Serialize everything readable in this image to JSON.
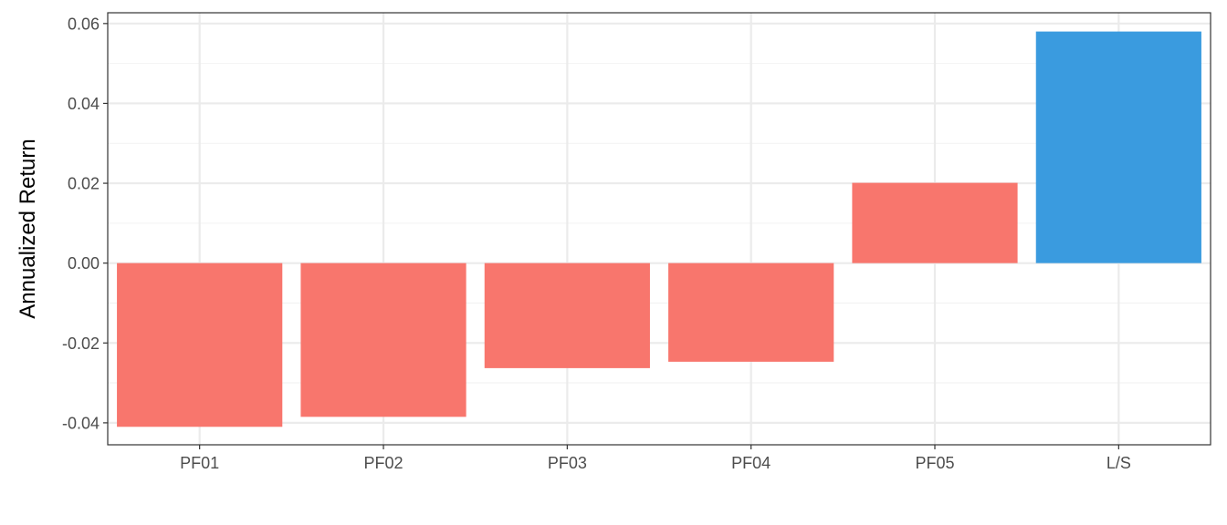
{
  "chart_data": {
    "type": "bar",
    "title": "",
    "xlabel": "",
    "ylabel": "Annualized Return",
    "categories": [
      "PF01",
      "PF02",
      "PF03",
      "PF04",
      "PF05",
      "L/S"
    ],
    "values": [
      -0.041,
      -0.0385,
      -0.0263,
      -0.0247,
      0.0201,
      0.058
    ],
    "bar_colors": [
      "#F8766D",
      "#F8766D",
      "#F8766D",
      "#F8766D",
      "#F8766D",
      "#3A9BDF"
    ],
    "ylim": [
      -0.0455,
      0.0627
    ],
    "yticks": [
      -0.04,
      -0.02,
      0.0,
      0.02,
      0.04,
      0.06
    ],
    "ytick_labels": [
      "-0.04",
      "-0.02",
      "0.00",
      "0.02",
      "0.04",
      "0.06"
    ],
    "grid": true,
    "legend": "none",
    "colors": {
      "negative_bar": "#F8766D",
      "long_short_bar": "#3A9BDF",
      "grid_major": "#EBEBEB",
      "grid_minor": "#F2F2F2",
      "panel_border": "#333333"
    }
  }
}
